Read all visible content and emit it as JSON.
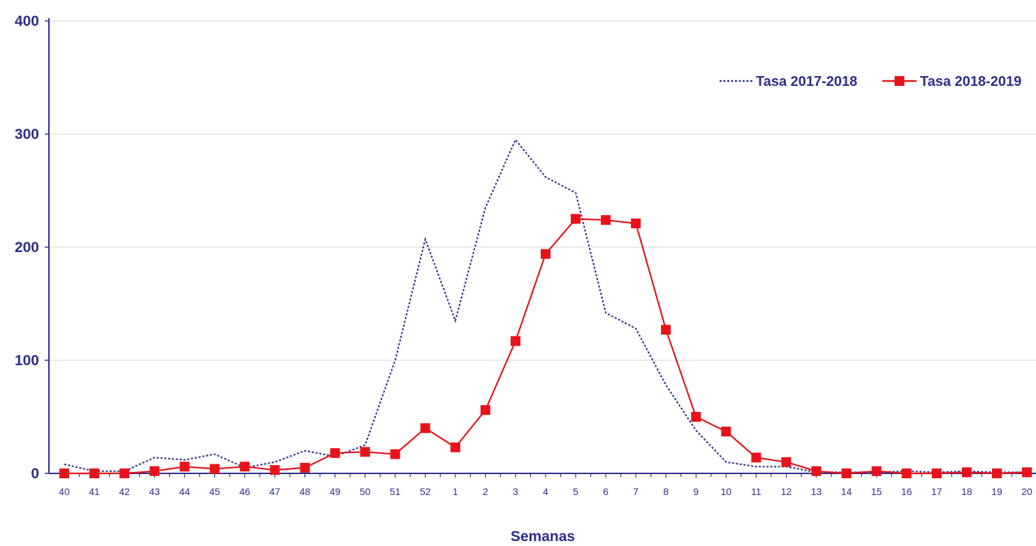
{
  "chart_data": {
    "type": "line",
    "title": "",
    "xlabel": "Semanas",
    "ylabel": "",
    "ylim": [
      0,
      400
    ],
    "yticks": [
      0,
      100,
      200,
      300,
      400
    ],
    "grid": true,
    "legend_position": "top-right",
    "categories": [
      "40",
      "41",
      "42",
      "43",
      "44",
      "45",
      "46",
      "47",
      "48",
      "49",
      "50",
      "51",
      "52",
      "1",
      "2",
      "3",
      "4",
      "5",
      "6",
      "7",
      "8",
      "9",
      "10",
      "11",
      "12",
      "13",
      "14",
      "15",
      "16",
      "17",
      "18",
      "19",
      "20"
    ],
    "series": [
      {
        "name": "Tasa 2017-2018",
        "style": "dotted",
        "color": "#2e3a8c",
        "values": [
          8,
          2,
          2,
          14,
          12,
          17,
          5,
          10,
          20,
          15,
          25,
          100,
          207,
          135,
          235,
          295,
          262,
          248,
          142,
          128,
          78,
          38,
          10,
          6,
          6,
          1,
          1,
          1,
          2,
          1,
          2,
          1,
          1
        ]
      },
      {
        "name": "Tasa 2018-2019",
        "style": "solid-square",
        "color": "#e8131a",
        "values": [
          0,
          0,
          0,
          2,
          6,
          4,
          6,
          3,
          5,
          18,
          19,
          17,
          40,
          23,
          56,
          117,
          194,
          225,
          224,
          221,
          127,
          50,
          37,
          14,
          10,
          2,
          0,
          2,
          0,
          0,
          1,
          0,
          1
        ]
      }
    ]
  }
}
